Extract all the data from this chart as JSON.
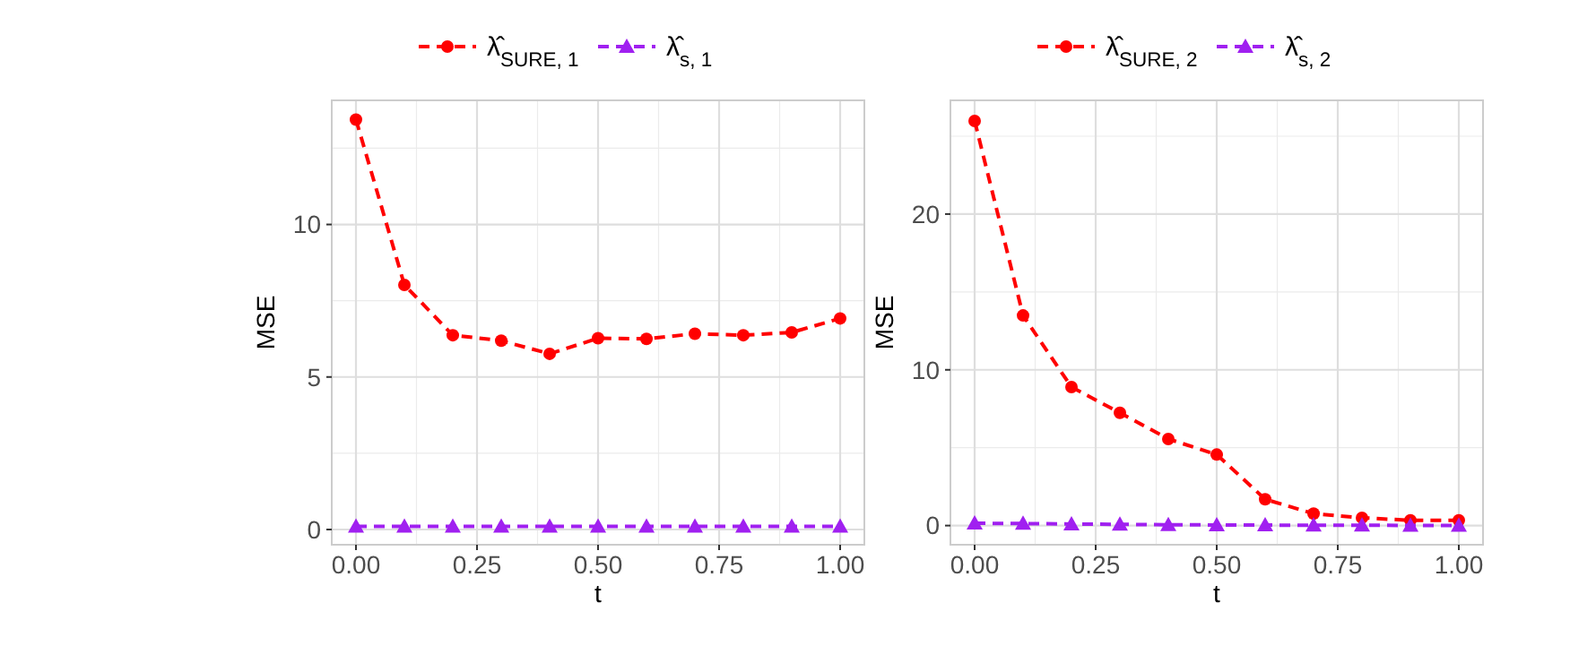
{
  "chart_data": [
    {
      "type": "line",
      "xlabel": "t",
      "ylabel": "MSE",
      "x": [
        0,
        0.1,
        0.2,
        0.3,
        0.4,
        0.5,
        0.6,
        0.7,
        0.8,
        0.9,
        1.0
      ],
      "xlim": [
        -0.05,
        1.05
      ],
      "xticks": [
        {
          "value": 0,
          "label": "0.00"
        },
        {
          "value": 0.25,
          "label": "0.25"
        },
        {
          "value": 0.5,
          "label": "0.50"
        },
        {
          "value": 0.75,
          "label": "0.75"
        },
        {
          "value": 1,
          "label": "1.00"
        }
      ],
      "ylim": [
        -0.5,
        14.07
      ],
      "yticks": [
        0,
        5,
        10
      ],
      "grid": true,
      "legend": "top",
      "line_style": "dashed",
      "series": [
        {
          "name": "λ̂$_{SURE, 1}$",
          "color": "#ff0000",
          "marker": "circle",
          "values": [
            13.44,
            8.02,
            6.37,
            6.19,
            5.76,
            6.27,
            6.25,
            6.42,
            6.37,
            6.46,
            6.92
          ]
        },
        {
          "name": "λ̂$_{s, 1}$",
          "color": "#a020f0",
          "marker": "triangle",
          "values": [
            0.1,
            0.1,
            0.1,
            0.1,
            0.1,
            0.1,
            0.1,
            0.1,
            0.1,
            0.1,
            0.1
          ]
        }
      ]
    },
    {
      "type": "line",
      "xlabel": "t",
      "ylabel": "MSE",
      "x": [
        0,
        0.1,
        0.2,
        0.3,
        0.4,
        0.5,
        0.6,
        0.7,
        0.8,
        0.9,
        1.0
      ],
      "xlim": [
        -0.05,
        1.05
      ],
      "xticks": [
        {
          "value": 0,
          "label": "0.00"
        },
        {
          "value": 0.25,
          "label": "0.25"
        },
        {
          "value": 0.5,
          "label": "0.50"
        },
        {
          "value": 0.75,
          "label": "0.75"
        },
        {
          "value": 1,
          "label": "1.00"
        }
      ],
      "ylim": [
        -1.23,
        27.3
      ],
      "yticks": [
        0,
        10,
        20
      ],
      "grid": true,
      "legend": "top",
      "line_style": "dashed",
      "series": [
        {
          "name": "λ̂$_{SURE, 2}$",
          "color": "#ff0000",
          "marker": "circle",
          "values": [
            25.98,
            13.49,
            8.89,
            7.24,
            5.56,
            4.56,
            1.69,
            0.77,
            0.5,
            0.34,
            0.34
          ]
        },
        {
          "name": "λ̂$_{s, 2}$",
          "color": "#a020f0",
          "marker": "triangle",
          "values": [
            0.15,
            0.13,
            0.1,
            0.08,
            0.05,
            0.04,
            0.03,
            0.02,
            0.02,
            0.01,
            0.01
          ]
        }
      ]
    }
  ]
}
